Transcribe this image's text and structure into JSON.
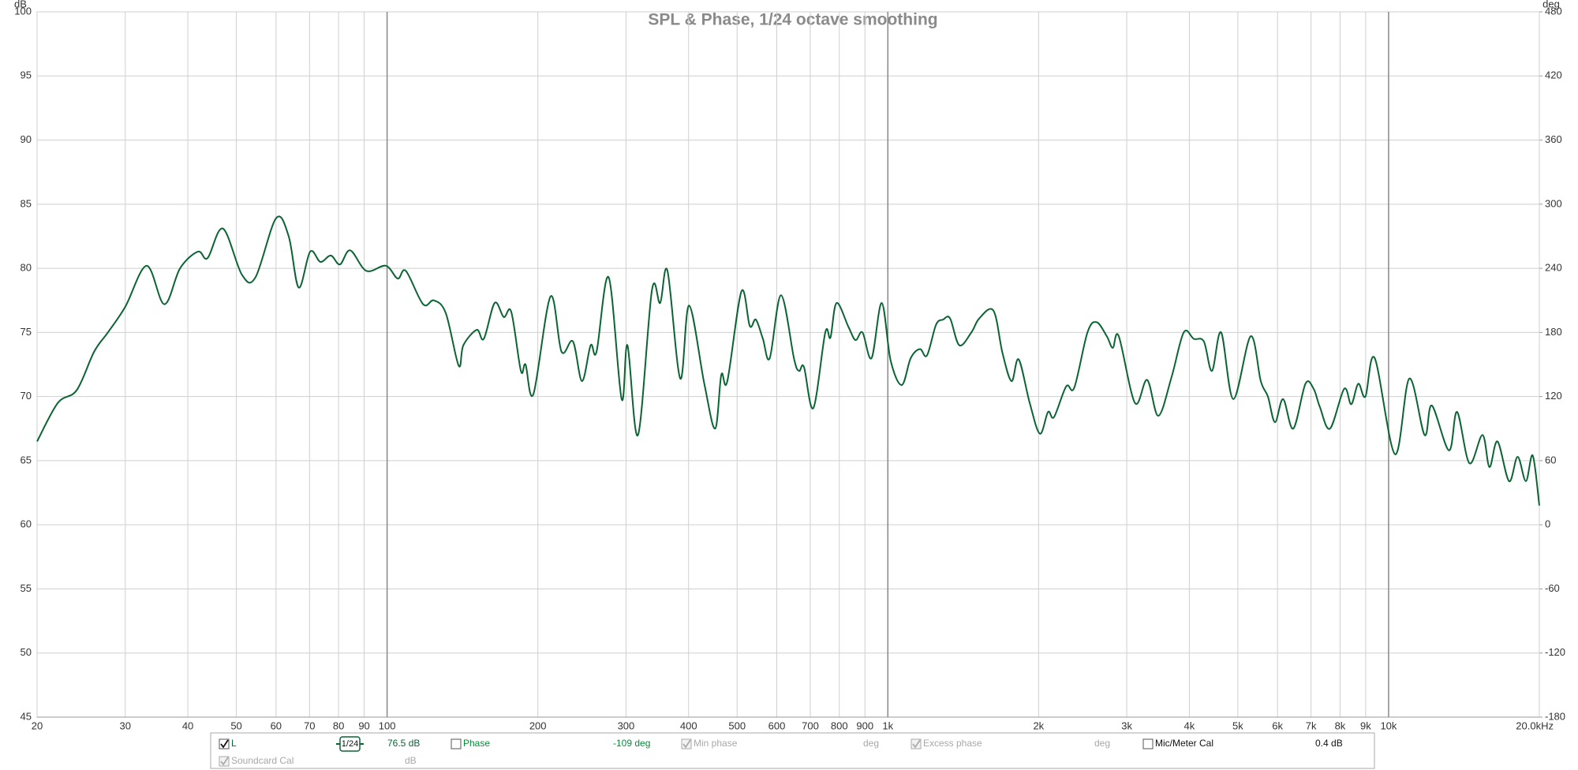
{
  "chart_data": {
    "type": "line",
    "title": "SPL & Phase, 1/24 octave smoothing",
    "ylabel": "dB",
    "y2label": "deg",
    "xscale": "log",
    "xlim": [
      20,
      20000
    ],
    "xticks": [
      20,
      30,
      40,
      50,
      60,
      70,
      80,
      90,
      100,
      200,
      300,
      400,
      500,
      600,
      700,
      800,
      900,
      {
        "value": 1000,
        "label": "1k"
      },
      {
        "value": 2000,
        "label": "2k"
      },
      {
        "value": 3000,
        "label": "3k"
      },
      {
        "value": 4000,
        "label": "4k"
      },
      {
        "value": 5000,
        "label": "5k"
      },
      {
        "value": 6000,
        "label": "6k"
      },
      {
        "value": 7000,
        "label": "7k"
      },
      {
        "value": 8000,
        "label": "8k"
      },
      {
        "value": 9000,
        "label": "9k"
      },
      {
        "value": 10000,
        "label": "10k"
      },
      {
        "value": 20000,
        "label": "20.0kHz"
      }
    ],
    "major_xticks": [
      100,
      1000,
      10000
    ],
    "ylim": [
      45,
      100
    ],
    "yticks": [
      45,
      50,
      55,
      60,
      65,
      70,
      75,
      80,
      85,
      90,
      95,
      100
    ],
    "y2lim": [
      -180,
      480
    ],
    "y2ticks": [
      -180,
      -120,
      -60,
      0,
      60,
      120,
      180,
      240,
      300,
      360,
      420,
      480
    ],
    "grid": true,
    "x": [
      20,
      22,
      24,
      26,
      27.7,
      30,
      33.1,
      35.9,
      38.6,
      41.9,
      43.8,
      47,
      51.3,
      54.6,
      60,
      63.6,
      66.6,
      70.2,
      73.6,
      77.2,
      80.5,
      84.4,
      90.9,
      99.4,
      105,
      109,
      118,
      124,
      131,
      139,
      142,
      151,
      156,
      164,
      171,
      177,
      185,
      189,
      196,
      212,
      223,
      235,
      245,
      255,
      262,
      277,
      294,
      302,
      317,
      338,
      351,
      363,
      385,
      401,
      430,
      452,
      465,
      478,
      510,
      530,
      545,
      563,
      581,
      612,
      650,
      665,
      680,
      710,
      750,
      768,
      790,
      835,
      862,
      890,
      928,
      972,
      1013,
      1066,
      1111,
      1159,
      1197,
      1248,
      1289,
      1331,
      1389,
      1468,
      1523,
      1625,
      1694,
      1766,
      1825,
      1920,
      2012,
      2089,
      2147,
      2271,
      2357,
      2504,
      2612,
      2737,
      2813,
      2892,
      3115,
      3295,
      3468,
      3685,
      3898,
      4083,
      4276,
      4439,
      4630,
      4897,
      5303,
      5556,
      5741,
      5931,
      6157,
      6451,
      6823,
      7085,
      7288,
      7638,
      8152,
      8421,
      8700,
      8990,
      9381,
      10300,
      11000,
      11800,
      12200,
      13200,
      13700,
      14500,
      15400,
      15900,
      16500,
      17400,
      18100,
      18800,
      19400,
      20000
    ],
    "series": [
      {
        "name": "L",
        "color": "#0b6433",
        "smoothing": "1/24",
        "readout": "76.5 dB",
        "checked": true,
        "values": [
          66.5,
          69.5,
          70.5,
          73.5,
          75,
          77,
          80.2,
          77.2,
          80,
          81.3,
          80.8,
          83.1,
          79.5,
          79.3,
          83.9,
          82.5,
          78.5,
          81.3,
          80.5,
          81,
          80.3,
          81.4,
          79.8,
          80.2,
          79.2,
          79.8,
          77.2,
          77.5,
          76.5,
          72.4,
          74,
          75.2,
          74.5,
          77.3,
          76.2,
          76.6,
          72,
          72.5,
          70.2,
          77.8,
          73.5,
          74.3,
          71.2,
          74,
          73.5,
          79.3,
          69.8,
          74,
          67,
          78.3,
          77.3,
          79.8,
          71.4,
          77.1,
          71,
          67.5,
          71.7,
          71.2,
          78.2,
          75.5,
          76,
          74.5,
          73,
          77.9,
          72.9,
          72,
          72.3,
          69.1,
          75,
          74.6,
          77.3,
          75.4,
          74.4,
          75,
          73,
          77.3,
          72.8,
          70.9,
          73,
          73.7,
          73.2,
          75.6,
          76,
          76.1,
          74,
          75,
          76.1,
          76.7,
          73.4,
          71.2,
          72.9,
          69.5,
          67.1,
          68.8,
          68.4,
          70.8,
          70.7,
          75,
          75.8,
          74.7,
          73.8,
          74.7,
          69.5,
          71.3,
          68.5,
          71.5,
          75,
          74.5,
          74.3,
          72,
          75,
          69.8,
          74.7,
          71.2,
          70,
          68,
          69.8,
          67.5,
          71,
          70.6,
          69.2,
          67.5,
          70.6,
          69.4,
          71,
          70,
          73,
          65.5,
          71.4,
          67,
          69.3,
          65.8,
          68.8,
          64.8,
          67,
          64.5,
          66.5,
          63.4,
          65.3,
          63.4,
          65.4,
          61.5
        ]
      }
    ],
    "controls": [
      {
        "label": "Phase",
        "readout": "-109 deg",
        "checked": false,
        "enabled": true,
        "color": "#0b8a3c"
      },
      {
        "label": "Min phase",
        "readout": "deg",
        "checked": true,
        "enabled": false,
        "color": "#a8a8a8"
      },
      {
        "label": "Excess phase",
        "readout": "deg",
        "checked": true,
        "enabled": false,
        "color": "#a8a8a8"
      },
      {
        "label": "Mic/Meter Cal",
        "readout": "0.4 dB",
        "checked": false,
        "enabled": true,
        "color": "#111111"
      },
      {
        "label": "Soundcard Cal",
        "readout": "dB",
        "checked": true,
        "enabled": false,
        "color": "#a8a8a8"
      }
    ]
  }
}
